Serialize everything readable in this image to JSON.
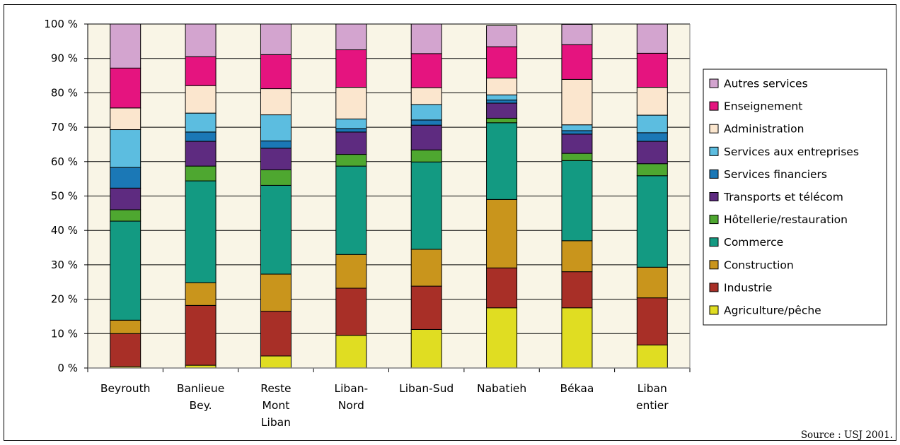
{
  "chart_data": {
    "type": "bar",
    "stacked": true,
    "percent": true,
    "categories": [
      [
        "Beyrouth"
      ],
      [
        "Banlieue",
        "Bey."
      ],
      [
        "Reste",
        "Mont",
        "Liban"
      ],
      [
        "Liban-",
        "Nord"
      ],
      [
        "Liban-Sud"
      ],
      [
        "Nabatieh"
      ],
      [
        "Békaa"
      ],
      [
        "Liban",
        "entier"
      ]
    ],
    "ylim": [
      0,
      100
    ],
    "yticks": [
      0,
      10,
      20,
      30,
      40,
      50,
      60,
      70,
      80,
      90,
      100
    ],
    "ytick_labels": [
      "0 %",
      "10 %",
      "20 %",
      "30 %",
      "40 %",
      "50 %",
      "60 %",
      "70 %",
      "80 %",
      "90 %",
      "100 %"
    ],
    "grid": "horizontal",
    "plot_background": "#f9f5e6",
    "legend_position": "right",
    "series": [
      {
        "name": "Agriculture/pêche",
        "color": "#e0dd22",
        "values": [
          0.4,
          0.8,
          3.5,
          9.5,
          11.2,
          17.5,
          17.5,
          6.7
        ]
      },
      {
        "name": "Industrie",
        "color": "#a82f27",
        "values": [
          9.6,
          17.4,
          13.0,
          13.7,
          12.6,
          11.6,
          10.5,
          13.7
        ]
      },
      {
        "name": "Construction",
        "color": "#c9951c",
        "values": [
          3.9,
          6.6,
          10.8,
          9.8,
          10.7,
          19.9,
          9.0,
          8.9
        ]
      },
      {
        "name": "Commerce",
        "color": "#139a82",
        "values": [
          28.8,
          29.6,
          25.8,
          25.7,
          25.4,
          22.3,
          23.3,
          26.6
        ]
      },
      {
        "name": "Hôtellerie/restauration",
        "color": "#4ea730",
        "values": [
          3.3,
          4.3,
          4.5,
          3.4,
          3.5,
          1.3,
          2.1,
          3.5
        ]
      },
      {
        "name": "Transports et télécom",
        "color": "#5e2b80",
        "values": [
          6.3,
          7.2,
          6.3,
          6.5,
          7.2,
          4.4,
          5.6,
          6.5
        ]
      },
      {
        "name": "Services financiers",
        "color": "#1b78b6",
        "values": [
          6.0,
          2.7,
          2.1,
          1.0,
          1.5,
          0.9,
          1.0,
          2.5
        ]
      },
      {
        "name": "Services aux entreprises",
        "color": "#5cbde0",
        "values": [
          11.0,
          5.5,
          7.6,
          2.8,
          4.5,
          1.5,
          1.7,
          5.1
        ]
      },
      {
        "name": "Administration",
        "color": "#fbe6ce",
        "values": [
          6.3,
          8.0,
          7.6,
          9.2,
          4.9,
          4.9,
          13.2,
          8.1
        ]
      },
      {
        "name": "Enseignement",
        "color": "#e5147f",
        "values": [
          11.6,
          8.4,
          9.9,
          10.9,
          9.9,
          9.1,
          10.1,
          9.9
        ]
      },
      {
        "name": "Autres services",
        "color": "#d3a4cf",
        "values": [
          12.8,
          9.5,
          8.9,
          7.5,
          8.6,
          6.1,
          5.9,
          8.5
        ]
      }
    ],
    "source": "Source : USJ 2001."
  }
}
